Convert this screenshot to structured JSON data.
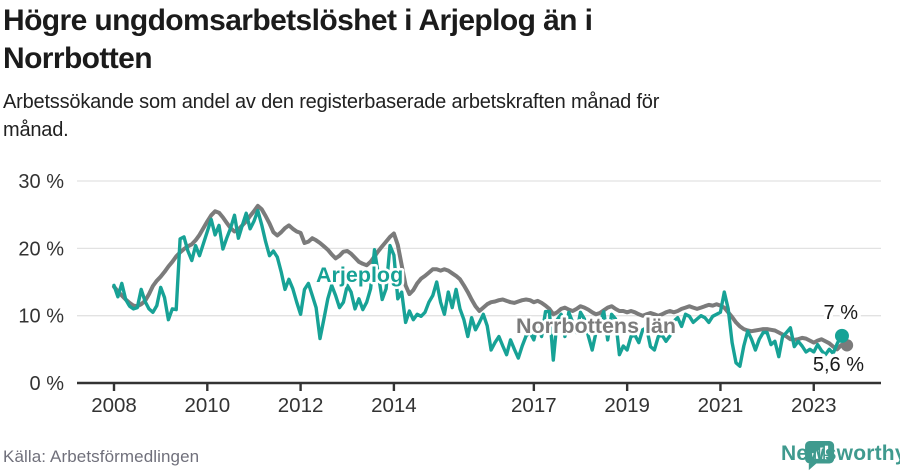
{
  "header": {
    "title_lines": [
      "Högre ungdomsarbetslöshet i Arjeplog än i",
      "Norrbotten"
    ],
    "subtitle_lines": [
      "Arbetssökande som andel av den registerbaserade arbetskraften månad för",
      "månad."
    ]
  },
  "footer": {
    "source": "Källa: Arbetsförmedlingen",
    "brand": "Newsworthy",
    "brand_icon": "newsworthy-barchart-exclamation-icon",
    "brand_color": "#3f9a8e"
  },
  "colors": {
    "background": "#ffffff",
    "title": "#1b1b1b",
    "axis_text": "#333333",
    "axis_line": "#333333",
    "gridline": "#e2e2e2",
    "arjeplog": "#17a296",
    "norrbotten": "#7b7b7b",
    "end_label_text": "#1a1a1a",
    "source_text": "#70707b"
  },
  "chart_data": {
    "type": "line",
    "title": "Högre ungdomsarbetslöshet i Arjeplog än i Norrbotten",
    "subtitle": "Arbetssökande som andel av den registerbaserade arbetskraften månad för månad.",
    "frequency": "monthly",
    "x_start": "2008-01",
    "x_end": "2023-08",
    "ylim": [
      0,
      30
    ],
    "grid": "horizontal",
    "legend_position": "inline-labels",
    "y_ticks": [
      {
        "value": 30,
        "label": "30 %"
      },
      {
        "value": 20,
        "label": "20 %"
      },
      {
        "value": 10,
        "label": "10 %"
      },
      {
        "value": 0,
        "label": "0 %"
      }
    ],
    "x_ticks": [
      {
        "value": 2008,
        "label": "2008"
      },
      {
        "value": 2010,
        "label": "2010"
      },
      {
        "value": 2012,
        "label": "2012"
      },
      {
        "value": 2014,
        "label": "2014"
      },
      {
        "value": 2017,
        "label": "2017"
      },
      {
        "value": 2019,
        "label": "2019"
      },
      {
        "value": 2021,
        "label": "2021"
      },
      {
        "value": 2023,
        "label": "2023"
      }
    ],
    "series": [
      {
        "name": "Norrbottens län",
        "color": "#7b7b7b",
        "line_width": 4,
        "end_value": 5.6,
        "end_label": "5,6 %",
        "values": [
          14.3,
          13.6,
          13.0,
          12.4,
          11.9,
          11.5,
          11.4,
          11.7,
          12.2,
          13.2,
          14.4,
          15.2,
          15.8,
          16.5,
          17.3,
          18.0,
          18.8,
          19.4,
          19.9,
          20.3,
          20.6,
          21.2,
          22.0,
          23.0,
          24.0,
          24.9,
          25.5,
          25.3,
          24.6,
          23.8,
          23.0,
          22.5,
          22.8,
          23.4,
          24.0,
          24.8,
          25.5,
          26.3,
          25.8,
          24.8,
          23.7,
          22.4,
          21.9,
          22.4,
          23.0,
          23.4,
          22.9,
          22.5,
          22.3,
          20.8,
          21.0,
          21.5,
          21.2,
          20.8,
          20.3,
          19.8,
          19.1,
          18.5,
          18.9,
          19.5,
          19.6,
          19.2,
          18.6,
          18.0,
          17.7,
          17.5,
          18.0,
          18.8,
          19.6,
          20.3,
          21.0,
          21.7,
          22.2,
          20.5,
          17.5,
          14.5,
          13.2,
          13.8,
          14.8,
          15.5,
          15.9,
          16.4,
          16.9,
          16.9,
          16.7,
          16.9,
          16.7,
          16.3,
          15.9,
          15.4,
          14.5,
          13.5,
          12.4,
          11.4,
          10.7,
          11.2,
          11.7,
          12.0,
          12.1,
          12.3,
          12.4,
          12.2,
          12.0,
          11.9,
          12.1,
          12.3,
          12.4,
          12.3,
          12.0,
          12.2,
          11.9,
          11.5,
          11.0,
          10.2,
          10.5,
          11.0,
          11.2,
          10.9,
          10.7,
          11.0,
          11.4,
          11.2,
          10.9,
          10.5,
          10.2,
          10.4,
          10.8,
          11.2,
          11.4,
          11.0,
          10.7,
          10.7,
          10.5,
          10.7,
          10.5,
          10.2,
          10.0,
          10.2,
          10.4,
          10.2,
          10.0,
          10.2,
          10.5,
          10.7,
          10.5,
          10.7,
          11.0,
          11.2,
          11.4,
          11.2,
          11.0,
          11.2,
          11.4,
          11.6,
          11.5,
          11.7,
          11.5,
          11.2,
          10.5,
          9.8,
          9.0,
          8.4,
          8.0,
          7.8,
          7.7,
          7.8,
          7.9,
          8.0,
          8.0,
          7.9,
          7.8,
          7.5,
          7.2,
          6.9,
          6.5,
          6.4,
          6.5,
          6.7,
          6.6,
          6.3,
          6.0,
          6.3,
          6.5,
          6.2,
          5.9,
          5.4,
          5.0,
          5.6
        ]
      },
      {
        "name": "Arjeplog",
        "color": "#17a296",
        "line_width": 3.4,
        "end_value": 7.0,
        "end_label": "7 %",
        "values": [
          14.5,
          12.8,
          14.8,
          12.4,
          11.4,
          11.0,
          11.2,
          13.9,
          12.1,
          11.0,
          10.5,
          11.5,
          14.2,
          12.7,
          9.4,
          11.0,
          10.9,
          21.4,
          21.7,
          19.6,
          18.2,
          20.4,
          18.9,
          20.7,
          22.5,
          24.3,
          22.0,
          23.4,
          19.9,
          21.5,
          23.0,
          24.9,
          21.5,
          23.4,
          25.2,
          22.9,
          24.0,
          25.6,
          23.5,
          21.0,
          18.9,
          19.6,
          18.7,
          16.5,
          13.9,
          15.4,
          14.0,
          12.0,
          10.2,
          13.9,
          14.8,
          13.0,
          11.2,
          6.6,
          9.5,
          12.5,
          14.5,
          13.0,
          11.2,
          12.0,
          14.5,
          13.5,
          11.0,
          12.5,
          10.9,
          12.0,
          14.0,
          19.8,
          16.0,
          12.4,
          14.0,
          20.4,
          19.0,
          12.5,
          13.5,
          9.0,
          10.7,
          9.4,
          10.2,
          9.9,
          10.5,
          12.0,
          13.0,
          15.0,
          12.0,
          10.2,
          13.5,
          11.2,
          13.9,
          11.0,
          9.4,
          6.9,
          9.7,
          7.9,
          9.0,
          10.2,
          8.5,
          4.9,
          6.0,
          6.9,
          5.5,
          4.2,
          6.4,
          5.0,
          3.7,
          5.5,
          7.0,
          7.5,
          6.4,
          8.7,
          6.9,
          10.6,
          10.6,
          3.4,
          9.4,
          10.2,
          6.9,
          10.5,
          9.0,
          7.5,
          10.5,
          9.5,
          7.0,
          4.9,
          7.5,
          9.0,
          10.6,
          6.4,
          10.2,
          9.5,
          4.2,
          5.5,
          4.9,
          6.9,
          7.1,
          6.0,
          7.9,
          8.2,
          5.4,
          4.9,
          6.9,
          7.1,
          6.2,
          7.0,
          9.2,
          9.7,
          8.4,
          10.2,
          9.9,
          9.0,
          9.5,
          10.0,
          9.7,
          9.0,
          9.9,
          10.2,
          10.5,
          13.5,
          11.0,
          6.0,
          3.0,
          2.5,
          5.5,
          7.7,
          6.5,
          4.9,
          6.5,
          7.5,
          7.5,
          5.7,
          6.2,
          3.9,
          6.9,
          7.5,
          8.2,
          5.4,
          6.2,
          5.5,
          4.6,
          5.0,
          4.6,
          5.7,
          4.8,
          4.2,
          5.0,
          4.4,
          5.8,
          7.0
        ]
      }
    ]
  }
}
